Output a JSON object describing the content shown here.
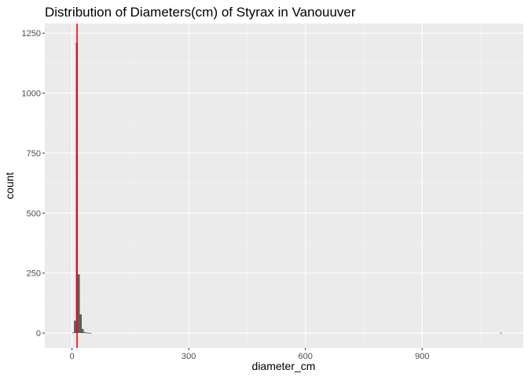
{
  "chart_data": {
    "type": "bar",
    "title": "Distribution of Diameters(cm) of Styrax in Vanouuver",
    "xlabel": "diameter_cm",
    "ylabel": "count",
    "xlim": [
      -70,
      1160
    ],
    "ylim": [
      -62,
      1290
    ],
    "x_ticks": [
      0,
      300,
      600,
      900
    ],
    "y_ticks": [
      0,
      250,
      500,
      750,
      1000,
      1250
    ],
    "x_tick_labels": [
      "0",
      "300",
      "600",
      "900"
    ],
    "y_tick_labels": [
      "0",
      "250",
      "500",
      "750",
      "1000",
      "1250"
    ],
    "grid": true,
    "bin_width": 5,
    "bins": [
      {
        "x0": 0,
        "x1": 5,
        "count": 2
      },
      {
        "x0": 5,
        "x1": 10,
        "count": 52
      },
      {
        "x0": 10,
        "x1": 15,
        "count": 1210
      },
      {
        "x0": 15,
        "x1": 20,
        "count": 245
      },
      {
        "x0": 20,
        "x1": 25,
        "count": 78
      },
      {
        "x0": 25,
        "x1": 30,
        "count": 17
      },
      {
        "x0": 30,
        "x1": 35,
        "count": 4
      },
      {
        "x0": 35,
        "x1": 40,
        "count": 2
      },
      {
        "x0": 40,
        "x1": 45,
        "count": 1
      },
      {
        "x0": 45,
        "x1": 50,
        "count": 1
      },
      {
        "x0": 1100,
        "x1": 1105,
        "count": 1
      }
    ],
    "vline": {
      "x": 13,
      "color": "#ff0000"
    },
    "colors": {
      "bar": "#595959",
      "panel": "#ebebeb",
      "grid_major": "#ffffff",
      "grid_minor": "#f5f5f5"
    }
  }
}
